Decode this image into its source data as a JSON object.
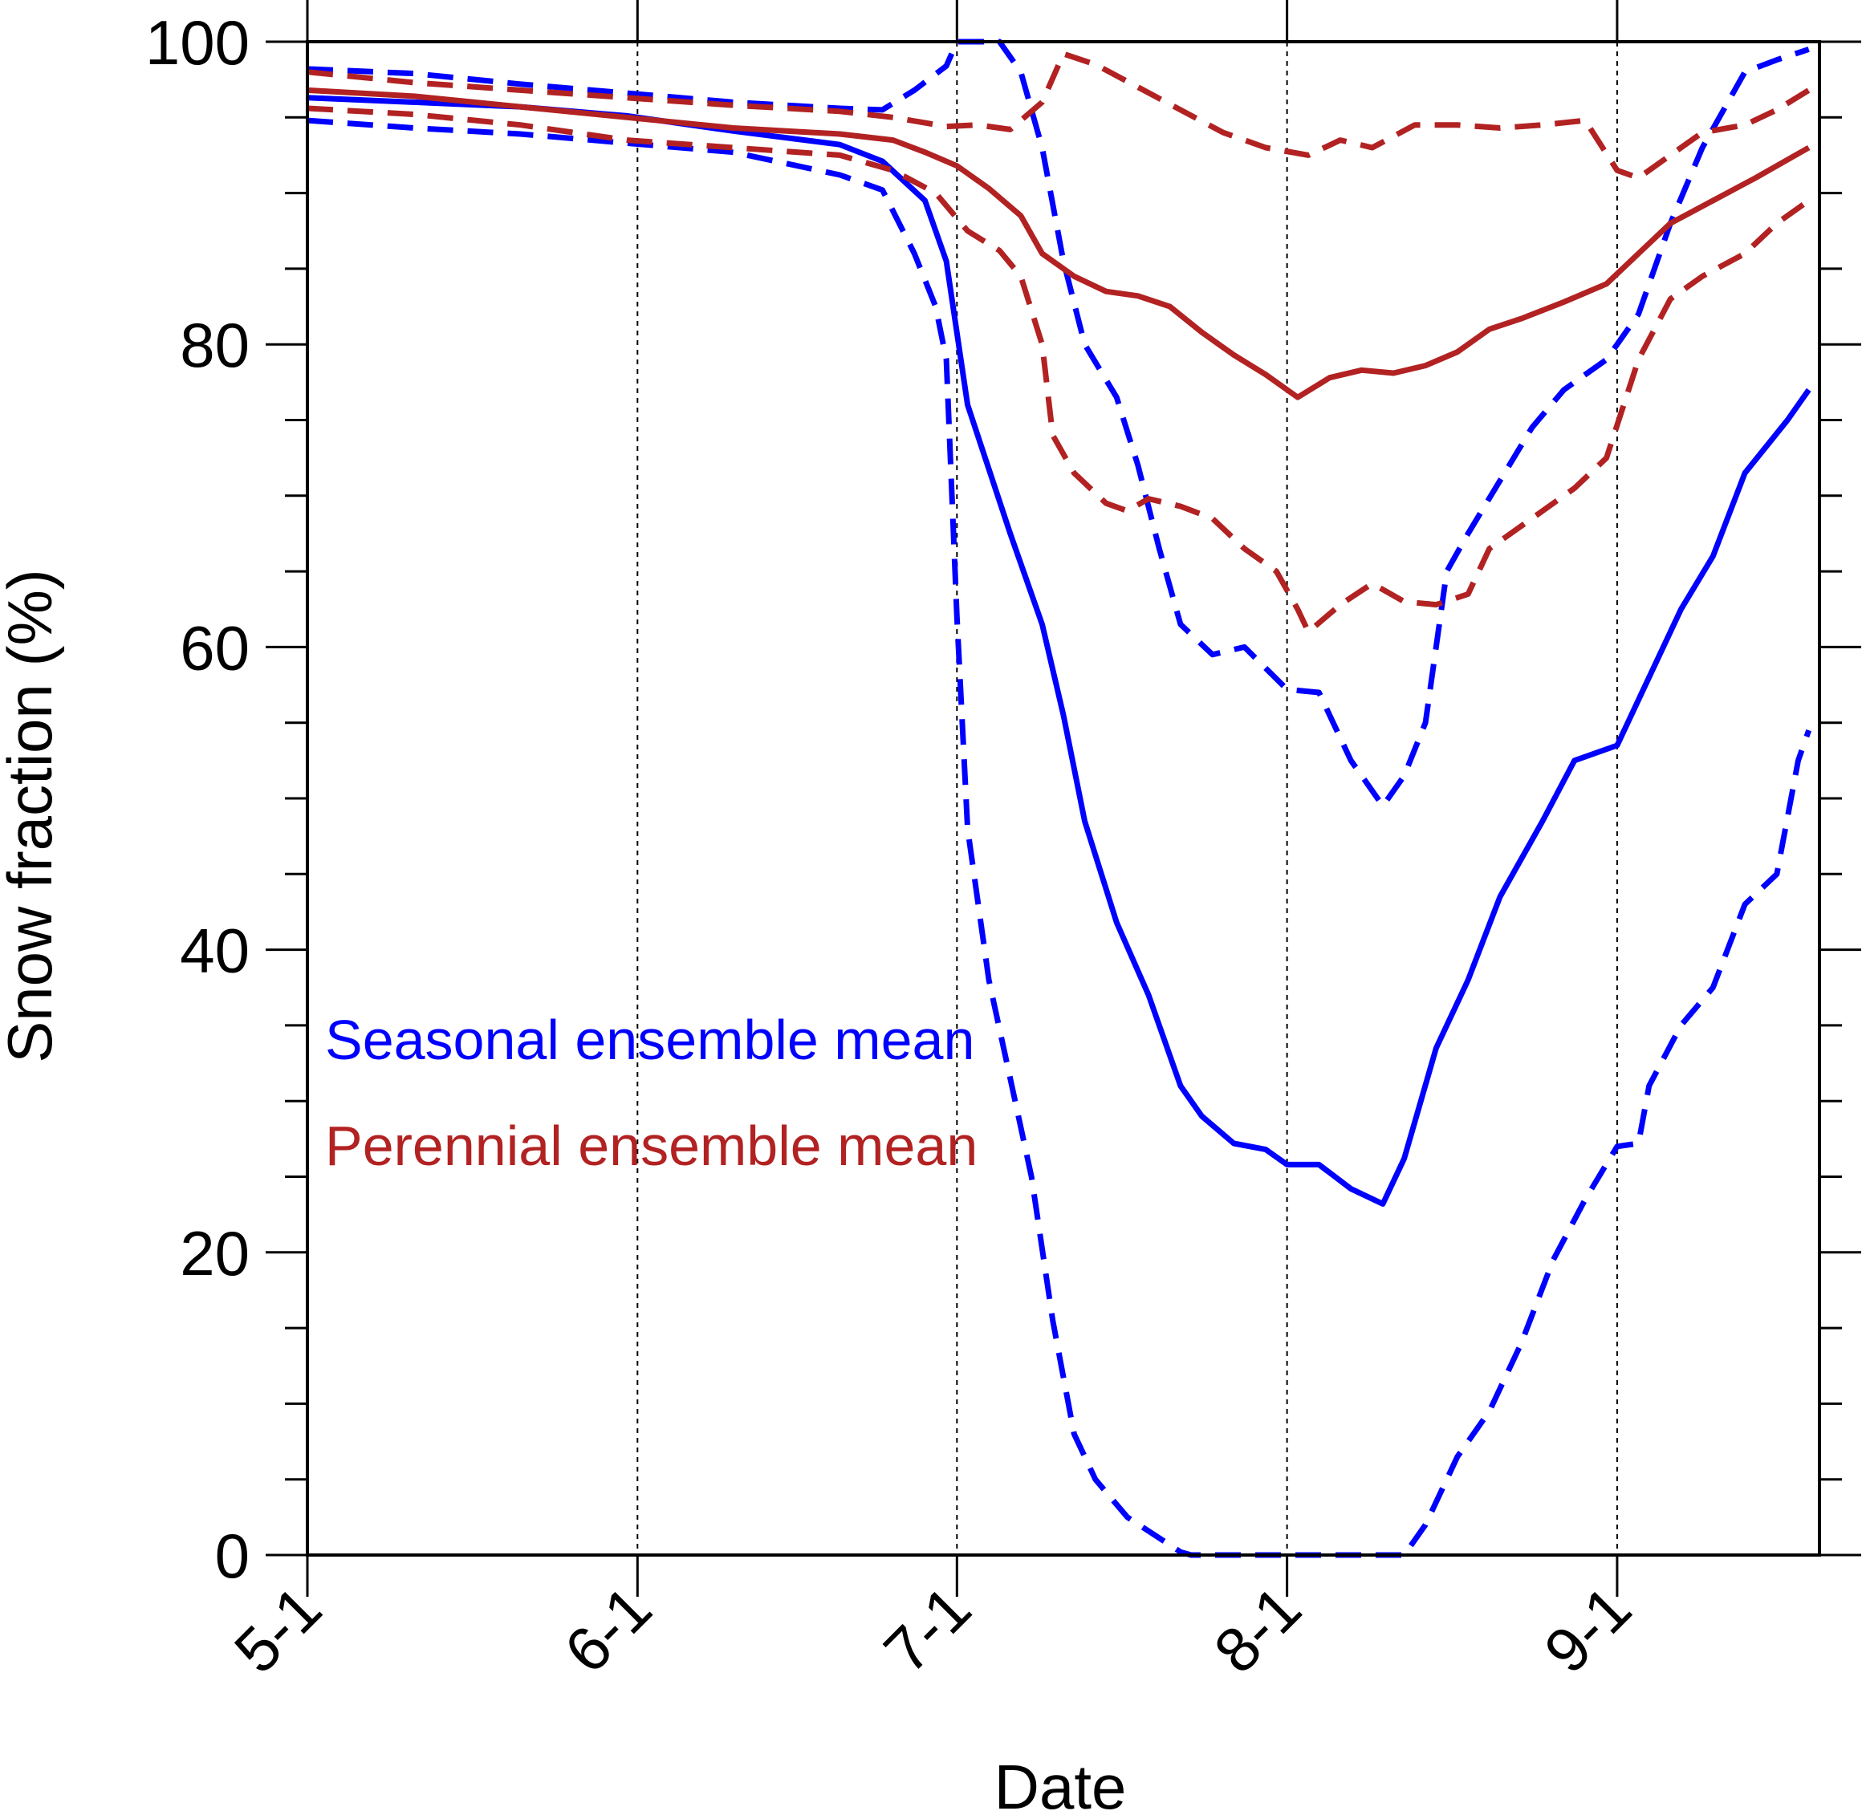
{
  "chart_data": {
    "type": "line",
    "xlabel": "Date",
    "ylabel": "Snow fraction (%)",
    "ylim": [
      0,
      100
    ],
    "xlim": [
      "5-1",
      "9-20"
    ],
    "x_tick_labels": [
      "5-1",
      "6-1",
      "7-1",
      "8-1",
      "9-1"
    ],
    "x_tick_dates": [
      "05-01",
      "06-01",
      "07-01",
      "08-01",
      "09-01"
    ],
    "y_tick_labels": [
      "0",
      "20",
      "40",
      "60",
      "80",
      "100"
    ],
    "y_tick_values": [
      0,
      20,
      40,
      60,
      80,
      100
    ],
    "grid": "vertical dotted at major x ticks",
    "legend_position": "left-center",
    "legend": [
      {
        "label": "Seasonal ensemble mean",
        "color": "#0000ff"
      },
      {
        "label": "Perennial ensemble mean",
        "color": "#b22222"
      }
    ],
    "series": [
      {
        "group": "seasonal",
        "style": "solid",
        "color": "#0000ff",
        "points": [
          [
            "05-01",
            96.3
          ],
          [
            "05-11",
            96.0
          ],
          [
            "05-21",
            95.7
          ],
          [
            "05-31",
            95.1
          ],
          [
            "06-10",
            94.1
          ],
          [
            "06-20",
            93.2
          ],
          [
            "06-24",
            92.1
          ],
          [
            "06-28",
            89.5
          ],
          [
            "06-30",
            85.5
          ],
          [
            "07-02",
            76.0
          ],
          [
            "07-06",
            67.5
          ],
          [
            "07-09",
            61.5
          ],
          [
            "07-11",
            55.5
          ],
          [
            "07-13",
            48.5
          ],
          [
            "07-16",
            41.8
          ],
          [
            "07-19",
            37.0
          ],
          [
            "07-22",
            31.0
          ],
          [
            "07-24",
            29.0
          ],
          [
            "07-27",
            27.2
          ],
          [
            "07-30",
            26.8
          ],
          [
            "08-01",
            25.8
          ],
          [
            "08-04",
            25.8
          ],
          [
            "08-07",
            24.2
          ],
          [
            "08-10",
            23.2
          ],
          [
            "08-12",
            26.2
          ],
          [
            "08-15",
            33.5
          ],
          [
            "08-18",
            38.0
          ],
          [
            "08-21",
            43.5
          ],
          [
            "08-25",
            48.5
          ],
          [
            "08-28",
            52.5
          ],
          [
            "09-01",
            53.5
          ],
          [
            "09-04",
            58.0
          ],
          [
            "09-07",
            62.5
          ],
          [
            "09-10",
            66.0
          ],
          [
            "09-13",
            71.5
          ],
          [
            "09-17",
            75.0
          ],
          [
            "09-19",
            77.0
          ]
        ]
      },
      {
        "group": "seasonal",
        "style": "dashed",
        "color": "#0000ff",
        "points": [
          [
            "05-01",
            98.2
          ],
          [
            "05-11",
            97.9
          ],
          [
            "05-21",
            97.2
          ],
          [
            "05-31",
            96.6
          ],
          [
            "06-10",
            96.0
          ],
          [
            "06-20",
            95.6
          ],
          [
            "06-24",
            95.5
          ],
          [
            "06-27",
            96.8
          ],
          [
            "06-30",
            98.4
          ],
          [
            "07-01",
            100
          ],
          [
            "07-05",
            100
          ],
          [
            "07-07",
            98.0
          ],
          [
            "07-09",
            93.0
          ],
          [
            "07-11",
            85.5
          ],
          [
            "07-13",
            80.0
          ],
          [
            "07-16",
            76.5
          ],
          [
            "07-18",
            72.0
          ],
          [
            "07-20",
            66.5
          ],
          [
            "07-22",
            61.5
          ],
          [
            "07-25",
            59.5
          ],
          [
            "07-28",
            60.0
          ],
          [
            "08-01",
            57.2
          ],
          [
            "08-04",
            57.0
          ],
          [
            "08-07",
            52.5
          ],
          [
            "08-10",
            49.5
          ],
          [
            "08-12",
            51.5
          ],
          [
            "08-14",
            55.0
          ],
          [
            "08-16",
            65.0
          ],
          [
            "08-18",
            67.5
          ],
          [
            "08-21",
            71.0
          ],
          [
            "08-24",
            74.5
          ],
          [
            "08-27",
            77.0
          ],
          [
            "08-31",
            79.0
          ],
          [
            "09-03",
            82.0
          ],
          [
            "09-06",
            88.0
          ],
          [
            "09-09",
            93.0
          ],
          [
            "09-13",
            98.0
          ],
          [
            "09-16",
            98.8
          ],
          [
            "09-19",
            99.5
          ]
        ]
      },
      {
        "group": "seasonal",
        "style": "dashed",
        "color": "#0000ff",
        "points": [
          [
            "05-01",
            94.8
          ],
          [
            "05-11",
            94.3
          ],
          [
            "05-21",
            93.9
          ],
          [
            "05-31",
            93.3
          ],
          [
            "06-10",
            92.7
          ],
          [
            "06-20",
            91.2
          ],
          [
            "06-24",
            90.2
          ],
          [
            "06-27",
            86.0
          ],
          [
            "06-29",
            82.5
          ],
          [
            "06-30",
            79.0
          ],
          [
            "07-01",
            62.0
          ],
          [
            "07-02",
            48.0
          ],
          [
            "07-04",
            38.0
          ],
          [
            "07-06",
            31.5
          ],
          [
            "07-08",
            25.0
          ],
          [
            "07-10",
            15.5
          ],
          [
            "07-12",
            8.0
          ],
          [
            "07-14",
            5.0
          ],
          [
            "07-17",
            2.5
          ],
          [
            "07-22",
            0.2
          ],
          [
            "07-23",
            0
          ],
          [
            "08-12",
            0
          ],
          [
            "08-14",
            2.0
          ],
          [
            "08-17",
            6.5
          ],
          [
            "08-20",
            9.5
          ],
          [
            "08-23",
            14.0
          ],
          [
            "08-26",
            19.5
          ],
          [
            "08-29",
            23.5
          ],
          [
            "09-01",
            27.0
          ],
          [
            "09-03",
            27.2
          ],
          [
            "09-04",
            31.0
          ],
          [
            "09-07",
            35.0
          ],
          [
            "09-10",
            37.5
          ],
          [
            "09-13",
            43.0
          ],
          [
            "09-16",
            45.0
          ],
          [
            "09-18",
            52.5
          ],
          [
            "09-19",
            54.5
          ]
        ]
      },
      {
        "group": "perennial",
        "style": "solid",
        "color": "#b22222",
        "points": [
          [
            "05-01",
            96.8
          ],
          [
            "05-11",
            96.4
          ],
          [
            "05-21",
            95.7
          ],
          [
            "05-31",
            95.0
          ],
          [
            "06-10",
            94.3
          ],
          [
            "06-20",
            93.9
          ],
          [
            "06-25",
            93.5
          ],
          [
            "06-28",
            92.7
          ],
          [
            "07-01",
            91.8
          ],
          [
            "07-04",
            90.3
          ],
          [
            "07-07",
            88.5
          ],
          [
            "07-09",
            86.0
          ],
          [
            "07-12",
            84.5
          ],
          [
            "07-15",
            83.5
          ],
          [
            "07-18",
            83.2
          ],
          [
            "07-21",
            82.5
          ],
          [
            "07-24",
            80.8
          ],
          [
            "07-27",
            79.3
          ],
          [
            "07-30",
            78.0
          ],
          [
            "08-02",
            76.5
          ],
          [
            "08-05",
            77.8
          ],
          [
            "08-08",
            78.3
          ],
          [
            "08-11",
            78.1
          ],
          [
            "08-14",
            78.6
          ],
          [
            "08-17",
            79.5
          ],
          [
            "08-20",
            81.0
          ],
          [
            "08-23",
            81.7
          ],
          [
            "08-27",
            82.8
          ],
          [
            "08-31",
            84.0
          ],
          [
            "09-03",
            86.0
          ],
          [
            "09-06",
            88.0
          ],
          [
            "09-10",
            89.5
          ],
          [
            "09-14",
            91.0
          ],
          [
            "09-19",
            93.0
          ]
        ]
      },
      {
        "group": "perennial",
        "style": "dashed",
        "color": "#b22222",
        "points": [
          [
            "05-01",
            98.0
          ],
          [
            "05-11",
            97.3
          ],
          [
            "05-21",
            96.8
          ],
          [
            "05-31",
            96.3
          ],
          [
            "06-10",
            95.8
          ],
          [
            "06-20",
            95.4
          ],
          [
            "06-25",
            95.0
          ],
          [
            "06-30",
            94.4
          ],
          [
            "07-03",
            94.5
          ],
          [
            "07-06",
            94.2
          ],
          [
            "07-09",
            96.0
          ],
          [
            "07-11",
            99.2
          ],
          [
            "07-14",
            98.5
          ],
          [
            "07-18",
            97.0
          ],
          [
            "07-22",
            95.5
          ],
          [
            "07-26",
            94.0
          ],
          [
            "07-30",
            93.0
          ],
          [
            "08-03",
            92.5
          ],
          [
            "08-06",
            93.5
          ],
          [
            "08-09",
            93.0
          ],
          [
            "08-13",
            94.5
          ],
          [
            "08-17",
            94.5
          ],
          [
            "08-21",
            94.3
          ],
          [
            "08-25",
            94.5
          ],
          [
            "08-29",
            94.8
          ],
          [
            "09-01",
            91.5
          ],
          [
            "09-03",
            91.0
          ],
          [
            "09-06",
            92.5
          ],
          [
            "09-09",
            94.0
          ],
          [
            "09-13",
            94.5
          ],
          [
            "09-16",
            95.5
          ],
          [
            "09-19",
            96.8
          ]
        ]
      },
      {
        "group": "perennial",
        "style": "dashed",
        "color": "#b22222",
        "points": [
          [
            "05-01",
            95.6
          ],
          [
            "05-11",
            95.2
          ],
          [
            "05-21",
            94.5
          ],
          [
            "05-31",
            93.5
          ],
          [
            "06-10",
            93.0
          ],
          [
            "06-20",
            92.5
          ],
          [
            "06-25",
            91.5
          ],
          [
            "06-29",
            90.0
          ],
          [
            "07-02",
            87.5
          ],
          [
            "07-05",
            86.2
          ],
          [
            "07-07",
            84.5
          ],
          [
            "07-09",
            80.0
          ],
          [
            "07-10",
            74.0
          ],
          [
            "07-12",
            71.5
          ],
          [
            "07-15",
            69.5
          ],
          [
            "07-17",
            69.0
          ],
          [
            "07-19",
            69.8
          ],
          [
            "07-22",
            69.3
          ],
          [
            "07-25",
            68.5
          ],
          [
            "07-28",
            66.5
          ],
          [
            "07-31",
            65.0
          ],
          [
            "08-02",
            62.5
          ],
          [
            "08-03",
            61.0
          ],
          [
            "08-06",
            62.8
          ],
          [
            "08-09",
            64.2
          ],
          [
            "08-12",
            63.0
          ],
          [
            "08-15",
            62.8
          ],
          [
            "08-18",
            63.5
          ],
          [
            "08-20",
            66.5
          ],
          [
            "08-24",
            68.5
          ],
          [
            "08-28",
            70.5
          ],
          [
            "08-31",
            72.5
          ],
          [
            "09-03",
            79.0
          ],
          [
            "09-06",
            83.0
          ],
          [
            "09-09",
            84.5
          ],
          [
            "09-13",
            86.0
          ],
          [
            "09-16",
            88.0
          ],
          [
            "09-19",
            89.5
          ]
        ]
      }
    ]
  }
}
